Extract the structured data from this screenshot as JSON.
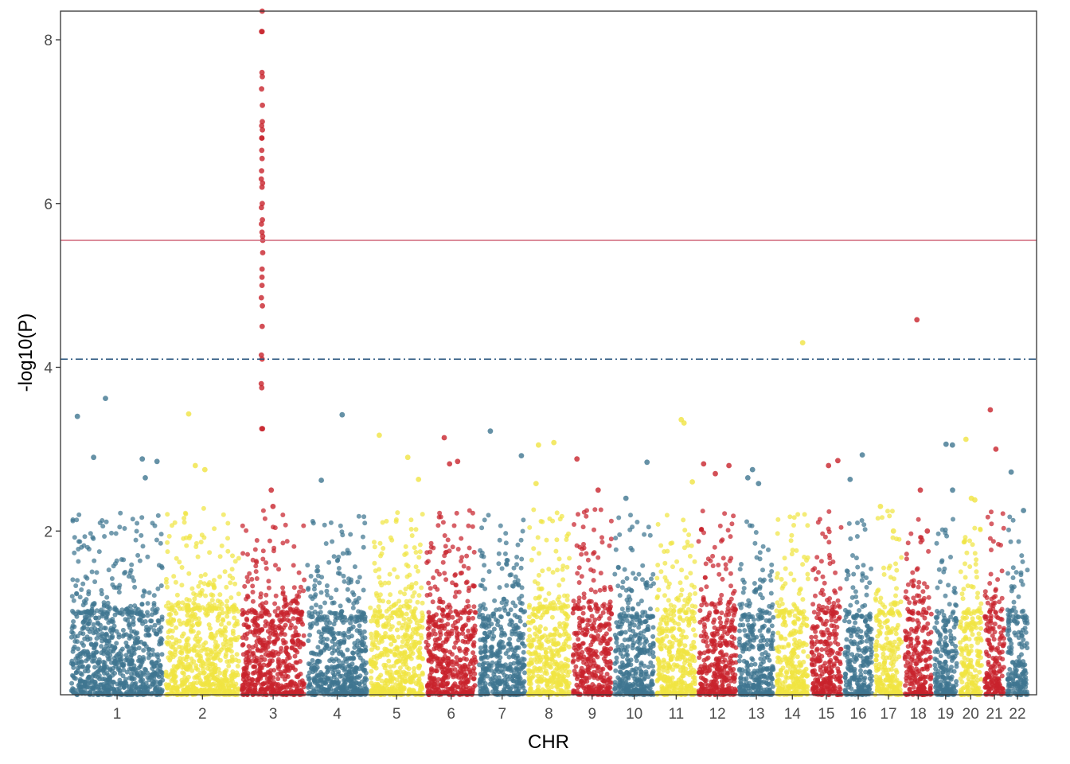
{
  "chart_data": {
    "type": "scatter",
    "subtype": "manhattan",
    "title": "",
    "xlabel": "CHR",
    "ylabel": "-log10(P)",
    "ylim": [
      0,
      8.35
    ],
    "yticks": [
      2,
      4,
      6,
      8
    ],
    "grid": false,
    "legend": "none",
    "threshold_lines": [
      {
        "value": 5.55,
        "style": "solid",
        "color": "#d0667a"
      },
      {
        "value": 4.1,
        "style": "dashdot",
        "color": "#1f4e79"
      }
    ],
    "palette": [
      "#3f7690",
      "#f0e442",
      "#c8232c"
    ],
    "chromosomes": [
      {
        "label": "1",
        "span": [
          -1.0,
          1.55
        ],
        "color": "#3f7690",
        "base_top": 1.0
      },
      {
        "label": "2",
        "span": [
          1.55,
          3.6
        ],
        "color": "#f0e442",
        "base_top": 1.05
      },
      {
        "label": "3",
        "span": [
          3.6,
          5.36
        ],
        "color": "#c8232c",
        "base_top": 1.0
      },
      {
        "label": "4",
        "span": [
          5.36,
          7.05
        ],
        "color": "#3f7690",
        "base_top": 0.95
      },
      {
        "label": "5",
        "span": [
          7.05,
          8.56
        ],
        "color": "#f0e442",
        "base_top": 1.0
      },
      {
        "label": "6",
        "span": [
          8.56,
          9.99
        ],
        "color": "#c8232c",
        "base_top": 1.0
      },
      {
        "label": "7",
        "span": [
          9.99,
          11.31
        ],
        "color": "#3f7690",
        "base_top": 0.95
      },
      {
        "label": "8",
        "span": [
          11.31,
          12.51
        ],
        "color": "#f0e442",
        "base_top": 1.05
      },
      {
        "label": "9",
        "span": [
          12.51,
          13.64
        ],
        "color": "#c8232c",
        "base_top": 1.05
      },
      {
        "label": "10",
        "span": [
          13.64,
          14.78
        ],
        "color": "#3f7690",
        "base_top": 0.95
      },
      {
        "label": "11",
        "span": [
          14.78,
          15.9
        ],
        "color": "#f0e442",
        "base_top": 1.0
      },
      {
        "label": "12",
        "span": [
          15.9,
          17.0
        ],
        "color": "#c8232c",
        "base_top": 1.0
      },
      {
        "label": "13",
        "span": [
          17.0,
          18.0
        ],
        "color": "#3f7690",
        "base_top": 0.95
      },
      {
        "label": "14",
        "span": [
          18.0,
          18.94
        ],
        "color": "#f0e442",
        "base_top": 1.0
      },
      {
        "label": "15",
        "span": [
          18.94,
          19.83
        ],
        "color": "#c8232c",
        "base_top": 1.0
      },
      {
        "label": "16",
        "span": [
          19.83,
          20.66
        ],
        "color": "#3f7690",
        "base_top": 0.95
      },
      {
        "label": "17",
        "span": [
          20.66,
          21.46
        ],
        "color": "#f0e442",
        "base_top": 1.0
      },
      {
        "label": "18",
        "span": [
          21.46,
          22.26
        ],
        "color": "#c8232c",
        "base_top": 1.0
      },
      {
        "label": "19",
        "span": [
          22.26,
          22.94
        ],
        "color": "#3f7690",
        "base_top": 0.9
      },
      {
        "label": "20",
        "span": [
          22.94,
          23.61
        ],
        "color": "#f0e442",
        "base_top": 1.0
      },
      {
        "label": "21",
        "span": [
          23.61,
          24.22
        ],
        "color": "#c8232c",
        "base_top": 1.0
      },
      {
        "label": "22",
        "span": [
          24.22,
          24.85
        ],
        "color": "#3f7690",
        "base_top": 0.95
      }
    ],
    "xlim": [
      -1.25,
      25.05
    ],
    "highlight_points": [
      {
        "chr": "3",
        "y": [
          8.35,
          8.1,
          8.1,
          7.6,
          7.55,
          7.4,
          7.2,
          7.0,
          6.95,
          6.9,
          6.8,
          6.8,
          6.65,
          6.55,
          6.4,
          6.3,
          6.25,
          6.2,
          6.0,
          5.95,
          5.8,
          5.75,
          5.65,
          5.6,
          5.55,
          5.4,
          5.2,
          5.1,
          5.0,
          4.85,
          4.75,
          4.5,
          4.15,
          4.1,
          3.8,
          3.75,
          3.25,
          3.25,
          2.5,
          2.3
        ]
      },
      {
        "chr": "14",
        "y": [
          4.3
        ]
      },
      {
        "chr": "18",
        "y": [
          4.58
        ]
      },
      {
        "chr": "1",
        "y": [
          3.62,
          3.4,
          2.88,
          2.85,
          2.9,
          2.65
        ]
      },
      {
        "chr": "2",
        "y": [
          3.43,
          2.8,
          2.75
        ]
      },
      {
        "chr": "4",
        "y": [
          3.42,
          2.62
        ]
      },
      {
        "chr": "5",
        "y": [
          3.17,
          2.9,
          2.63
        ]
      },
      {
        "chr": "6",
        "y": [
          3.14,
          2.85,
          2.82
        ]
      },
      {
        "chr": "7",
        "y": [
          3.22,
          2.92
        ]
      },
      {
        "chr": "8",
        "y": [
          3.08,
          3.05,
          2.58
        ]
      },
      {
        "chr": "9",
        "y": [
          2.88,
          2.5
        ]
      },
      {
        "chr": "10",
        "y": [
          2.84,
          2.4
        ]
      },
      {
        "chr": "11",
        "y": [
          3.36,
          3.32,
          2.6
        ]
      },
      {
        "chr": "12",
        "y": [
          2.82,
          2.8,
          2.7
        ]
      },
      {
        "chr": "13",
        "y": [
          2.75,
          2.65,
          2.58
        ]
      },
      {
        "chr": "15",
        "y": [
          2.86,
          2.8
        ]
      },
      {
        "chr": "16",
        "y": [
          2.93,
          2.63
        ]
      },
      {
        "chr": "17",
        "y": [
          2.3,
          2.0
        ]
      },
      {
        "chr": "18",
        "y": [
          2.5,
          2.0
        ]
      },
      {
        "chr": "19",
        "y": [
          3.06,
          3.05,
          2.5
        ]
      },
      {
        "chr": "20",
        "y": [
          3.12,
          2.4,
          2.38
        ]
      },
      {
        "chr": "21",
        "y": [
          3.48,
          3.0
        ]
      },
      {
        "chr": "22",
        "y": [
          2.72,
          2.25
        ]
      }
    ]
  }
}
